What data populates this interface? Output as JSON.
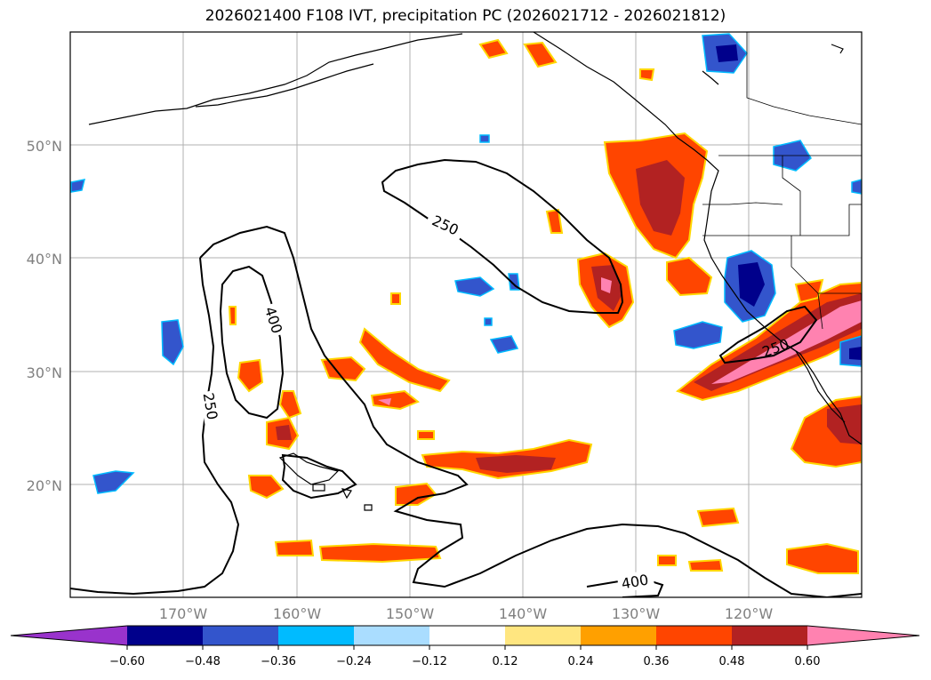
{
  "title": "2026021400 F108 IVT, precipitation PC (2026021712 - 2026021812)",
  "longitude_ticks": [
    "170°W",
    "160°W",
    "150°W",
    "140°W",
    "130°W",
    "120°W"
  ],
  "latitude_ticks": [
    "20°N",
    "30°N",
    "40°N",
    "50°N"
  ],
  "ivt_contour_labels": [
    "250",
    "400",
    "250",
    "400",
    "250"
  ],
  "colorbar": {
    "tick_labels": [
      "−0.60",
      "−0.48",
      "−0.36",
      "−0.24",
      "−0.12",
      "0.12",
      "0.24",
      "0.36",
      "0.48",
      "0.60"
    ],
    "colors": [
      "#9933cc",
      "#00008b",
      "#3355cc",
      "#00bbff",
      "#aaddff",
      "#ffffff",
      "#ffe680",
      "#ffa000",
      "#ff4500",
      "#b22222",
      "#ff82b0"
    ]
  },
  "map_colors": {
    "coast": "#000000",
    "grid": "#b0b0b0",
    "ivt_contour": "#000000"
  }
}
